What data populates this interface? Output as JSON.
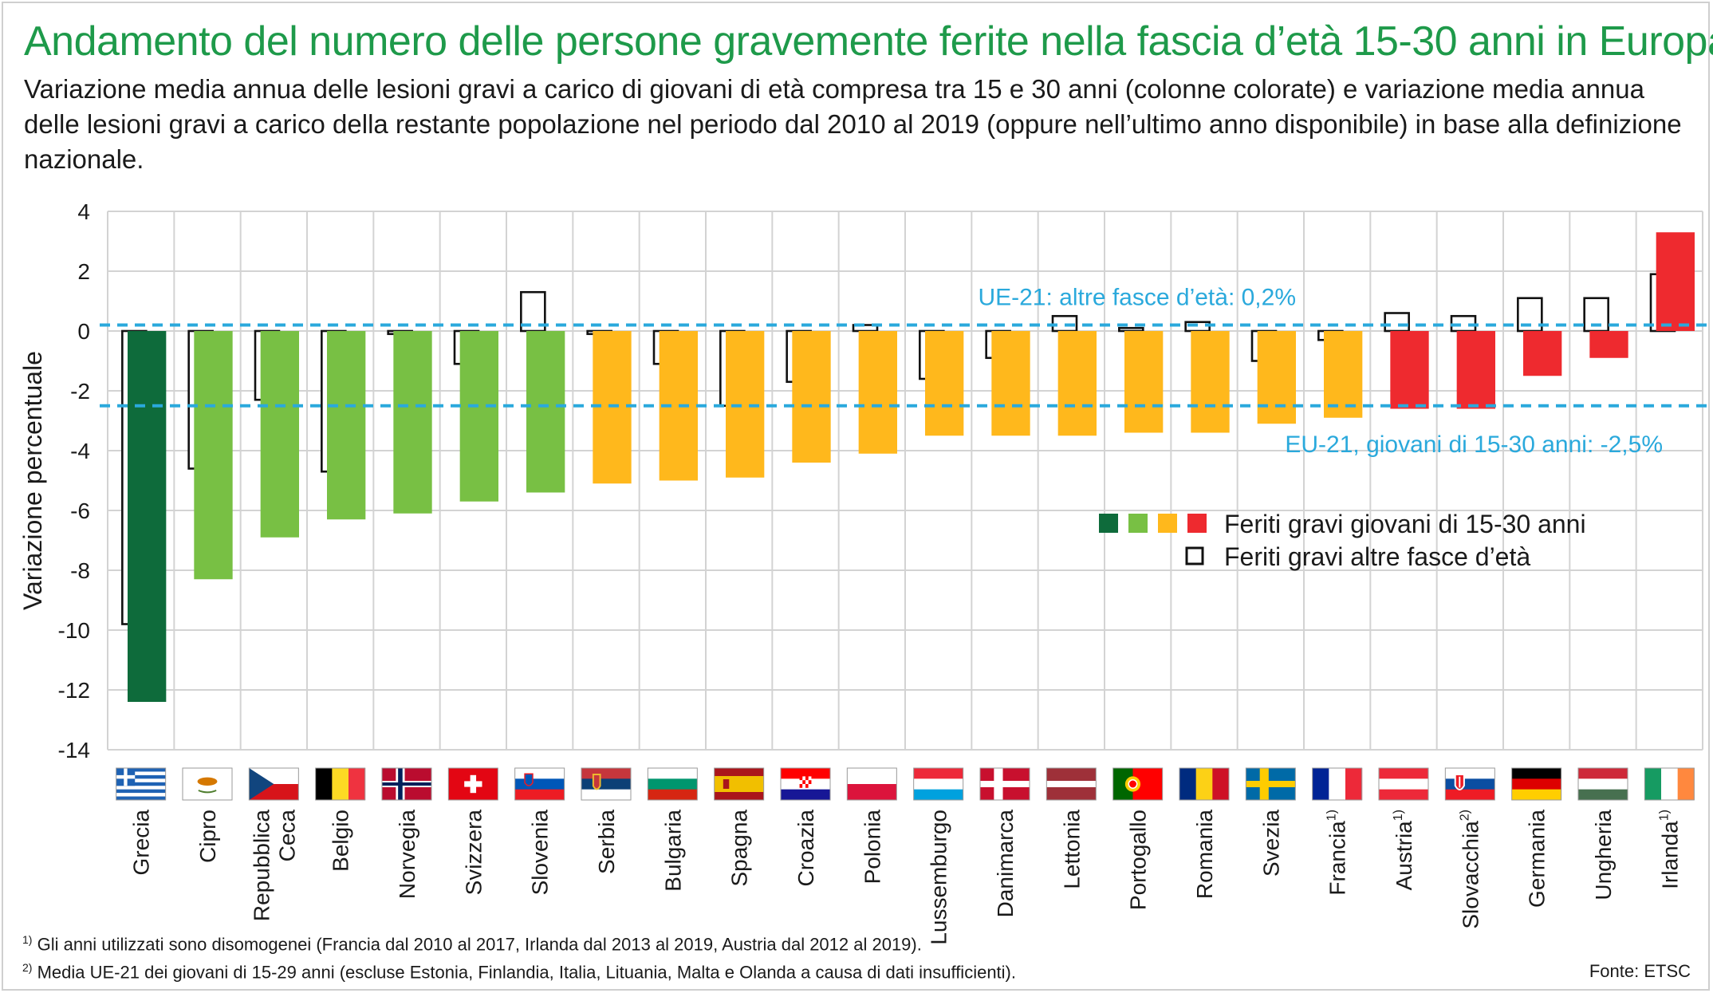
{
  "header": {
    "title": "Andamento del numero delle persone gravemente ferite nella fascia d’età 15-30 anni in Europa",
    "subtitle": "Variazione media annua delle lesioni gravi a carico di giovani di età compresa tra 15 e 30 anni (colonne colorate) e variazione media annua delle lesioni gravi a carico della restante popolazione nel periodo dal 2010 al 2019 (oppure nell’ultimo anno disponibile) in base alla definizione nazionale."
  },
  "colors": {
    "dark_green": "#0e6b3b",
    "light_green": "#78c044",
    "yellow": "#ffb81c",
    "red": "#ee2a2f",
    "ref_line": "#2aa9dc",
    "grid": "#d3d3d3"
  },
  "chart_data": {
    "type": "bar",
    "ylabel": "Variazione percentuale",
    "ylim": [
      -14,
      4
    ],
    "yticks": [
      4,
      2,
      0,
      -2,
      -4,
      -6,
      -8,
      -10,
      -12,
      -14
    ],
    "grid": true,
    "categories": [
      {
        "label": "Grecia",
        "sup": "",
        "young": -12.4,
        "other": -9.8,
        "group": "dark_green",
        "flag": "gr"
      },
      {
        "label": "Cipro",
        "sup": "",
        "young": -8.3,
        "other": -4.6,
        "group": "light_green",
        "flag": "cy"
      },
      {
        "label": "Repubblica Ceca",
        "sup": "",
        "young": -6.9,
        "other": -2.3,
        "group": "light_green",
        "flag": "cz"
      },
      {
        "label": "Belgio",
        "sup": "",
        "young": -6.3,
        "other": -4.7,
        "group": "light_green",
        "flag": "be"
      },
      {
        "label": "Norvegia",
        "sup": "",
        "young": -6.1,
        "other": -0.1,
        "group": "light_green",
        "flag": "no"
      },
      {
        "label": "Svizzera",
        "sup": "",
        "young": -5.7,
        "other": -1.1,
        "group": "light_green",
        "flag": "ch"
      },
      {
        "label": "Slovenia",
        "sup": "",
        "young": -5.4,
        "other": 1.3,
        "group": "light_green",
        "flag": "si"
      },
      {
        "label": "Serbia",
        "sup": "",
        "young": -5.1,
        "other": -0.1,
        "group": "yellow",
        "flag": "rs"
      },
      {
        "label": "Bulgaria",
        "sup": "",
        "young": -5.0,
        "other": -1.1,
        "group": "yellow",
        "flag": "bg"
      },
      {
        "label": "Spagna",
        "sup": "",
        "young": -4.9,
        "other": -2.5,
        "group": "yellow",
        "flag": "es"
      },
      {
        "label": "Croazia",
        "sup": "",
        "young": -4.4,
        "other": -1.7,
        "group": "yellow",
        "flag": "hr"
      },
      {
        "label": "Polonia",
        "sup": "",
        "young": -4.1,
        "other": 0.2,
        "group": "yellow",
        "flag": "pl"
      },
      {
        "label": "Lussemburgo",
        "sup": "",
        "young": -3.5,
        "other": -1.6,
        "group": "yellow",
        "flag": "lu"
      },
      {
        "label": "Danimarca",
        "sup": "",
        "young": -3.5,
        "other": -0.9,
        "group": "yellow",
        "flag": "dk"
      },
      {
        "label": "Lettonia",
        "sup": "",
        "young": -3.5,
        "other": 0.5,
        "group": "yellow",
        "flag": "lv"
      },
      {
        "label": "Portogallo",
        "sup": "",
        "young": -3.4,
        "other": 0.1,
        "group": "yellow",
        "flag": "pt"
      },
      {
        "label": "Romania",
        "sup": "",
        "young": -3.4,
        "other": 0.3,
        "group": "yellow",
        "flag": "ro"
      },
      {
        "label": "Svezia",
        "sup": "",
        "young": -3.1,
        "other": -1.0,
        "group": "yellow",
        "flag": "se"
      },
      {
        "label": "Francia",
        "sup": "1)",
        "young": -2.9,
        "other": -0.3,
        "group": "yellow",
        "flag": "fr"
      },
      {
        "label": "Austria",
        "sup": "1)",
        "young": -2.6,
        "other": 0.6,
        "group": "red",
        "flag": "at"
      },
      {
        "label": "Slovacchia",
        "sup": "2)",
        "young": -2.6,
        "other": 0.5,
        "group": "red",
        "flag": "sk"
      },
      {
        "label": "Germania",
        "sup": "",
        "young": -1.5,
        "other": 1.1,
        "group": "red",
        "flag": "de"
      },
      {
        "label": "Ungheria",
        "sup": "",
        "young": -0.9,
        "other": 1.1,
        "group": "red",
        "flag": "hu"
      },
      {
        "label": "Irlanda",
        "sup": "1)",
        "young": 3.3,
        "other": 1.9,
        "group": "red",
        "flag": "ie"
      }
    ],
    "reference_lines": [
      {
        "value": 0.2,
        "label": "UE-21: altre fasce d’età: 0,2%"
      },
      {
        "value": -2.5,
        "label": "EU-21, giovani di 15-30 anni: -2,5%"
      }
    ],
    "legend": {
      "placement": "right",
      "young_label": "Feriti gravi giovani di 15-30 anni",
      "other_label": "Feriti gravi altre fasce d’età"
    }
  },
  "footnotes": {
    "note1_mark": "1)",
    "note1": "Gli anni utilizzati sono disomogenei (Francia dal 2010 al 2017, Irlanda dal 2013 al 2019, Austria dal 2012 al 2019).",
    "note2_mark": "2)",
    "note2": "Media UE-21 dei giovani di 15-29 anni (escluse Estonia, Finlandia, Italia, Lituania, Malta e Olanda a causa di dati insufficienti).",
    "source": "Fonte: ETSC"
  }
}
